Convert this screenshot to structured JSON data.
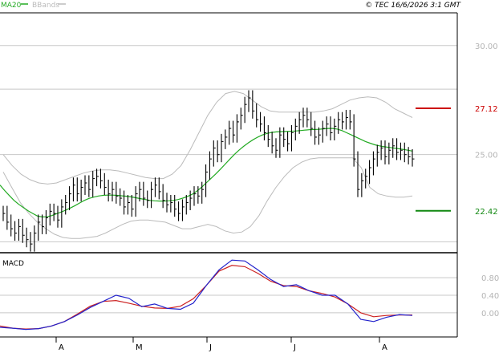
{
  "header": {
    "legend": [
      {
        "name": "MA20",
        "color": "#22aa22"
      },
      {
        "name": "BBands",
        "color": "#bbbbbb"
      }
    ],
    "copyright": "© TEC 16/6/2026 3:1 GMT"
  },
  "colors": {
    "background": "#ffffff",
    "grid": "#c8c8c8",
    "frame": "#000000",
    "axis_text": "#b4b4b4",
    "price_bar": "#000000",
    "ma20": "#22aa22",
    "bbands": "#bbbbbb",
    "resistance": "#cc0000",
    "support": "#118811",
    "macd_line": "#2222cc",
    "signal_line": "#cc2222"
  },
  "chart_data": [
    {
      "type": "line",
      "title": "",
      "description_series": "price OHLC bars with MA20 and Bollinger Bands",
      "ylim": [
        20.5,
        31.5
      ],
      "y_ticks": [
        "30.00",
        "25.00"
      ],
      "x_ticks": [
        "A",
        "M",
        "J",
        "J",
        "A"
      ],
      "levels": [
        {
          "label": "27.12",
          "value": 27.12,
          "color": "#cc0000"
        },
        {
          "label": "22.42",
          "value": 22.42,
          "color": "#118811"
        }
      ],
      "series": [
        {
          "name": "Close",
          "values": [
            22.3,
            21.9,
            21.6,
            21.4,
            21.7,
            21.3,
            21.1,
            20.9,
            21.4,
            21.9,
            21.7,
            22.1,
            22.4,
            22.3,
            22.0,
            22.6,
            22.8,
            23.2,
            23.6,
            23.2,
            23.5,
            23.7,
            23.4,
            23.9,
            24.0,
            23.8,
            23.5,
            23.2,
            23.4,
            23.1,
            23.0,
            22.6,
            22.8,
            22.5,
            23.2,
            23.4,
            23.0,
            22.9,
            23.4,
            23.6,
            23.3,
            22.9,
            22.7,
            22.8,
            22.5,
            22.3,
            22.6,
            22.8,
            23.0,
            23.2,
            23.1,
            23.4,
            24.2,
            24.8,
            25.3,
            25.0,
            25.6,
            25.8,
            26.2,
            25.9,
            26.5,
            26.8,
            27.3,
            27.6,
            27.0,
            26.6,
            26.4,
            26.0,
            25.7,
            25.4,
            25.2,
            25.9,
            25.7,
            25.5,
            26.0,
            26.3,
            26.6,
            26.8,
            26.6,
            26.2,
            25.8,
            25.9,
            26.2,
            26.4,
            26.0,
            26.3,
            26.6,
            26.5,
            26.7,
            26.5,
            24.8,
            23.4,
            23.8,
            24.0,
            24.4,
            24.8,
            25.1,
            25.3,
            24.9,
            25.2,
            25.4,
            25.1,
            25.2,
            25.0,
            24.9,
            24.8
          ]
        },
        {
          "name": "MA20",
          "values": [
            23.6,
            23.35,
            23.12,
            22.9,
            22.72,
            22.57,
            22.42,
            22.3,
            22.18,
            22.14,
            22.15,
            22.2,
            22.28,
            22.36,
            22.45,
            22.55,
            22.66,
            22.78,
            22.9,
            22.99,
            23.05,
            23.1,
            23.13,
            23.14,
            23.14,
            23.13,
            23.11,
            23.09,
            23.06,
            23.02,
            22.98,
            22.94,
            22.9,
            22.88,
            22.87,
            22.87,
            22.88,
            22.9,
            22.94,
            23.0,
            23.08,
            23.18,
            23.32,
            23.5,
            23.7,
            23.9,
            24.1,
            24.32,
            24.55,
            24.78,
            25.0,
            25.2,
            25.38,
            25.54,
            25.68,
            25.8,
            25.9,
            25.97,
            26.02,
            26.04,
            26.05,
            26.06,
            26.07,
            26.08,
            26.1,
            26.12,
            26.14,
            26.15,
            26.16,
            26.18,
            26.2,
            26.2,
            26.17,
            26.1,
            26.0,
            25.9,
            25.8,
            25.7,
            25.6,
            25.52,
            25.45,
            25.4,
            25.36,
            25.33,
            25.3,
            25.27,
            25.24,
            25.2,
            25.16
          ]
        },
        {
          "name": "BB upper",
          "values": [
            25.0,
            24.5,
            24.1,
            23.85,
            23.7,
            23.65,
            23.7,
            23.85,
            24.0,
            24.15,
            24.25,
            24.3,
            24.3,
            24.25,
            24.15,
            24.05,
            23.95,
            23.9,
            23.9,
            24.1,
            24.5,
            25.2,
            26.0,
            26.8,
            27.4,
            27.8,
            27.9,
            27.8,
            27.5,
            27.2,
            27.0,
            26.95,
            26.95,
            26.95,
            26.95,
            26.95,
            27.0,
            27.1,
            27.3,
            27.5,
            27.6,
            27.65,
            27.6,
            27.4,
            27.1,
            26.9,
            26.7
          ]
        },
        {
          "name": "BB lower",
          "values": [
            24.2,
            23.5,
            22.8,
            22.3,
            21.9,
            21.6,
            21.35,
            21.2,
            21.15,
            21.15,
            21.2,
            21.25,
            21.4,
            21.6,
            21.8,
            21.95,
            22.0,
            22.0,
            21.95,
            21.9,
            21.75,
            21.6,
            21.6,
            21.7,
            21.8,
            21.7,
            21.5,
            21.4,
            21.45,
            21.7,
            22.2,
            22.9,
            23.5,
            24.0,
            24.4,
            24.65,
            24.8,
            24.85,
            24.85,
            24.85,
            24.85,
            24.85,
            24.4,
            23.5,
            23.2,
            23.1,
            23.05,
            23.05,
            23.1
          ]
        }
      ]
    },
    {
      "type": "line",
      "title": "MACD",
      "ylim": [
        -0.55,
        1.35
      ],
      "y_ticks": [
        "0.80",
        "0.40",
        "0.00"
      ],
      "series": [
        {
          "name": "MACD",
          "values": [
            -0.33,
            -0.35,
            -0.38,
            -0.36,
            -0.3,
            -0.2,
            -0.05,
            0.12,
            0.26,
            0.4,
            0.33,
            0.14,
            0.2,
            0.1,
            0.08,
            0.22,
            0.62,
            0.98,
            1.2,
            1.18,
            0.98,
            0.76,
            0.6,
            0.64,
            0.5,
            0.4,
            0.4,
            0.2,
            -0.15,
            -0.2,
            -0.1,
            -0.04,
            -0.06
          ]
        },
        {
          "name": "Signal",
          "values": [
            -0.3,
            -0.35,
            -0.37,
            -0.36,
            -0.3,
            -0.2,
            -0.03,
            0.15,
            0.26,
            0.28,
            0.22,
            0.15,
            0.11,
            0.1,
            0.15,
            0.32,
            0.62,
            0.95,
            1.08,
            1.05,
            0.9,
            0.72,
            0.62,
            0.6,
            0.5,
            0.44,
            0.36,
            0.2,
            0.0,
            -0.09,
            -0.06,
            -0.05,
            -0.05
          ]
        }
      ]
    }
  ]
}
